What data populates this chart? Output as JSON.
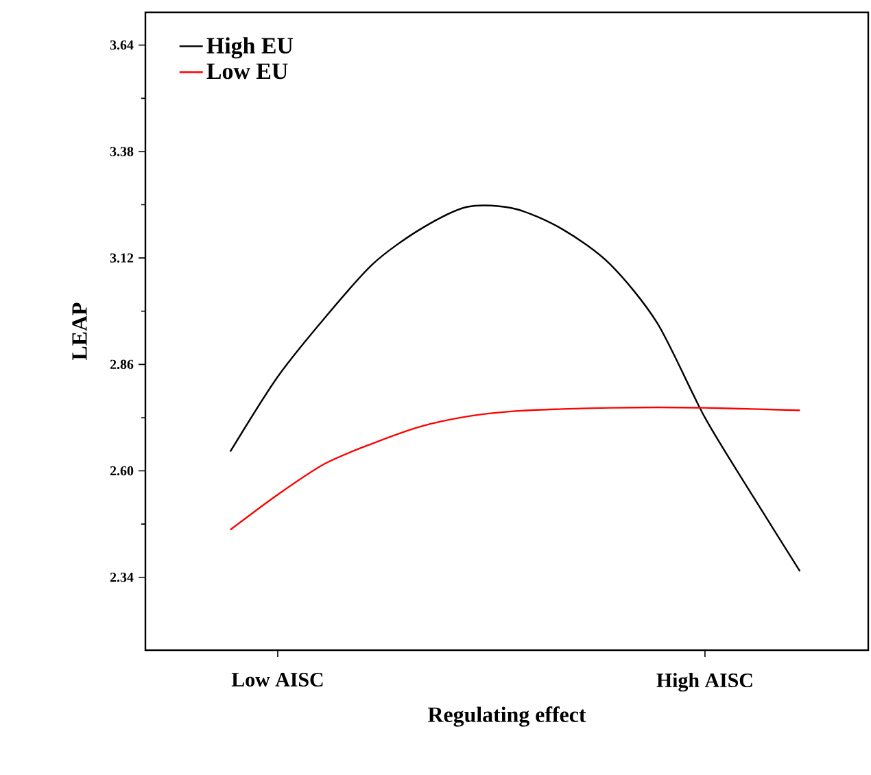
{
  "chart_data": {
    "type": "line",
    "xlabel": "Regulating effect",
    "ylabel": "LEAP",
    "categories": [
      null,
      "Low AISC",
      null,
      null,
      null,
      null,
      null,
      null,
      null,
      null,
      "High AISC",
      null,
      null
    ],
    "ylim": [
      2.162,
      3.72
    ],
    "yticks": [
      2.34,
      {
        "value": 2.6,
        "label": "2.60"
      },
      2.86,
      3.12,
      3.38,
      3.64
    ],
    "legend": "top left",
    "grid": false,
    "marker": "none",
    "line_style": "solid",
    "series": [
      {
        "name": "High EU",
        "color": "#000000",
        "values": [
          2.647,
          2.83,
          2.975,
          3.105,
          3.19,
          3.245,
          3.24,
          3.19,
          3.105,
          2.96,
          2.73,
          2.54,
          2.355
        ]
      },
      {
        "name": "Low EU",
        "color": "#ff0000",
        "values": [
          2.456,
          2.542,
          2.618,
          2.667,
          2.708,
          2.733,
          2.746,
          2.751,
          2.754,
          2.755,
          2.754,
          2.751,
          2.748
        ]
      }
    ]
  }
}
